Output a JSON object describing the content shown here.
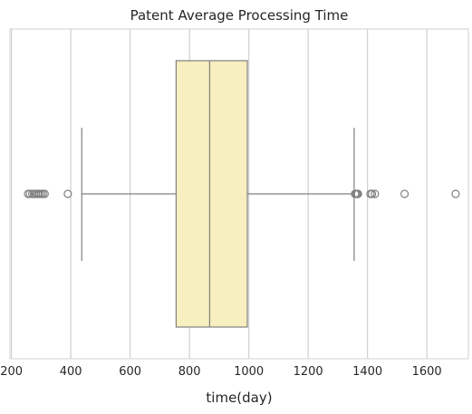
{
  "chart_data": {
    "type": "boxplot",
    "title": "Patent Average Processing Time",
    "xlabel": "time(day)",
    "ylabel": "",
    "orientation": "horizontal",
    "xlim": [
      195,
      1740
    ],
    "xticks": [
      200,
      400,
      600,
      800,
      1000,
      1200,
      1400,
      1600
    ],
    "grid": "vertical",
    "box": {
      "q1": 755,
      "median": 868,
      "q3": 995,
      "whisker_low": 437,
      "whisker_high": 1355,
      "fill": "#f7efbf",
      "edge": "#808080"
    },
    "outliers": [
      256,
      262,
      270,
      276,
      282,
      289,
      294,
      300,
      306,
      312,
      390,
      1358,
      1362,
      1365,
      1368,
      1410,
      1415,
      1425,
      1525,
      1697
    ]
  }
}
